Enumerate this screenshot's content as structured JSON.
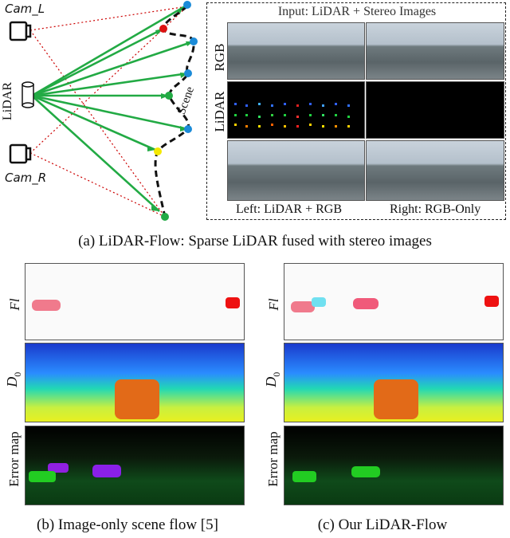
{
  "diagram": {
    "cam_l": "Cam_L",
    "cam_r": "Cam_R",
    "lidar_label": "LiDAR",
    "scene_label": "Scene"
  },
  "inset": {
    "title": "Input: LiDAR + Stereo Images",
    "row_rgb": "RGB",
    "row_lidar": "LiDAR",
    "footer_left": "Left: LiDAR + RGB",
    "footer_right": "Right: RGB-Only"
  },
  "captions": {
    "a": "(a) LiDAR-Flow: Sparse LiDAR fused with stereo images",
    "b": "(b) Image-only scene flow [5]",
    "c": "(c) Our LiDAR-Flow"
  },
  "row_labels": {
    "fl": "Fl",
    "d0": "D",
    "d0_sub": "0",
    "error": "Error map"
  },
  "colors": {
    "ray_green": "#22aa44",
    "ray_red": "#cc0000",
    "scene_dash": "#111111"
  }
}
